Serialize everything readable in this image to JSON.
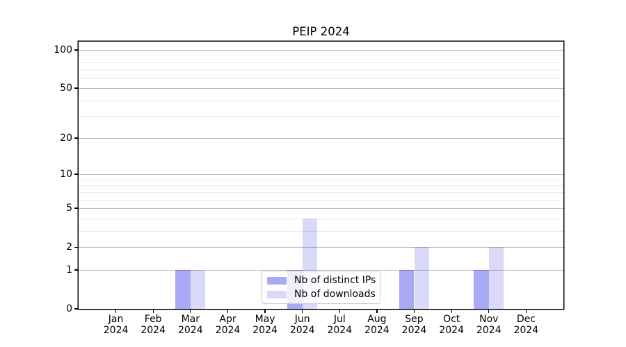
{
  "chart_data": {
    "type": "bar",
    "title": "PEIP 2024",
    "categories": [
      "Jan",
      "Feb",
      "Mar",
      "Apr",
      "May",
      "Jun",
      "Jul",
      "Aug",
      "Sep",
      "Oct",
      "Nov",
      "Dec"
    ],
    "year_label": "2024",
    "series": [
      {
        "name": "Nb of distinct IPs",
        "color": "#a9a9f6",
        "values": [
          0,
          0,
          1,
          0,
          0,
          1,
          0,
          0,
          1,
          0,
          1,
          0
        ]
      },
      {
        "name": "Nb of downloads",
        "color": "#dadaf8",
        "values": [
          0,
          0,
          1,
          0,
          0,
          4,
          0,
          0,
          2,
          0,
          2,
          0
        ]
      }
    ],
    "yscale": "log1p",
    "ylim": [
      0,
      116
    ],
    "yticks_major": [
      0,
      1,
      2,
      5,
      10,
      20,
      50,
      100
    ],
    "yticks_minor": [
      3,
      4,
      6,
      7,
      8,
      9,
      30,
      40,
      60,
      70,
      80,
      90
    ],
    "grid": {
      "major_color": "rgba(0,0,0,0.25)",
      "minor_color": "rgba(0,0,0,0.08)"
    },
    "legend": {
      "position": "lower center"
    },
    "axes": {
      "spine_color": "#000000",
      "background": "#ffffff"
    }
  }
}
